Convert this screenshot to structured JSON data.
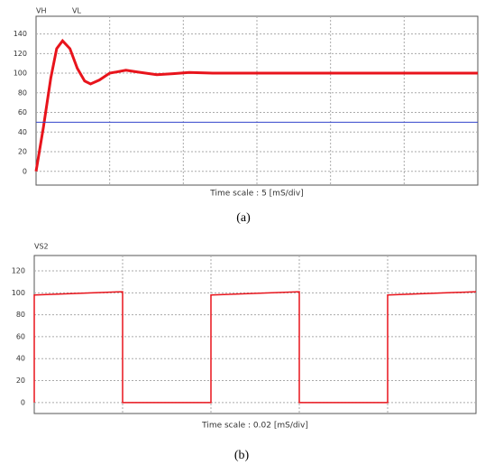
{
  "chart_data": [
    {
      "type": "line",
      "caption": "(a)",
      "xlabel": "Time scale : 5 [mS/div]",
      "xlim": [
        0,
        30
      ],
      "ylim": [
        -14,
        158
      ],
      "yticks": [
        0,
        20,
        40,
        60,
        80,
        100,
        120,
        140
      ],
      "grid": true,
      "series": [
        {
          "name": "VH",
          "color": "#e8141c",
          "line_width": 3,
          "x": [
            0,
            0.5,
            1.0,
            1.4,
            1.8,
            2.3,
            2.8,
            3.3,
            3.7,
            4.3,
            5.0,
            6.1,
            7.0,
            8.2,
            9.3,
            10.4,
            12,
            30
          ],
          "values": [
            0,
            45,
            95,
            125,
            133,
            125,
            105,
            92,
            89,
            93,
            100,
            103,
            101,
            98.5,
            99.5,
            100.7,
            100,
            100
          ]
        },
        {
          "name": "VL",
          "color": "#3344cc",
          "line_width": 1,
          "x": [
            0,
            30
          ],
          "values": [
            50,
            50
          ]
        }
      ]
    },
    {
      "type": "line",
      "caption": "(b)",
      "xlabel": "Time scale : 0.02 [mS/div]",
      "xlim": [
        0,
        0.1
      ],
      "ylim": [
        -10,
        134
      ],
      "yticks": [
        0,
        20,
        40,
        60,
        80,
        100,
        120
      ],
      "grid": true,
      "series": [
        {
          "name": "VS2",
          "color": "#e8141c",
          "line_width": 1.5,
          "x": [
            0,
            0,
            0.02,
            0.02,
            0.04,
            0.04,
            0.06,
            0.06,
            0.08,
            0.08,
            0.1
          ],
          "values": [
            0,
            98,
            101,
            0,
            0,
            98,
            101,
            0,
            0,
            98,
            101
          ]
        }
      ]
    }
  ]
}
